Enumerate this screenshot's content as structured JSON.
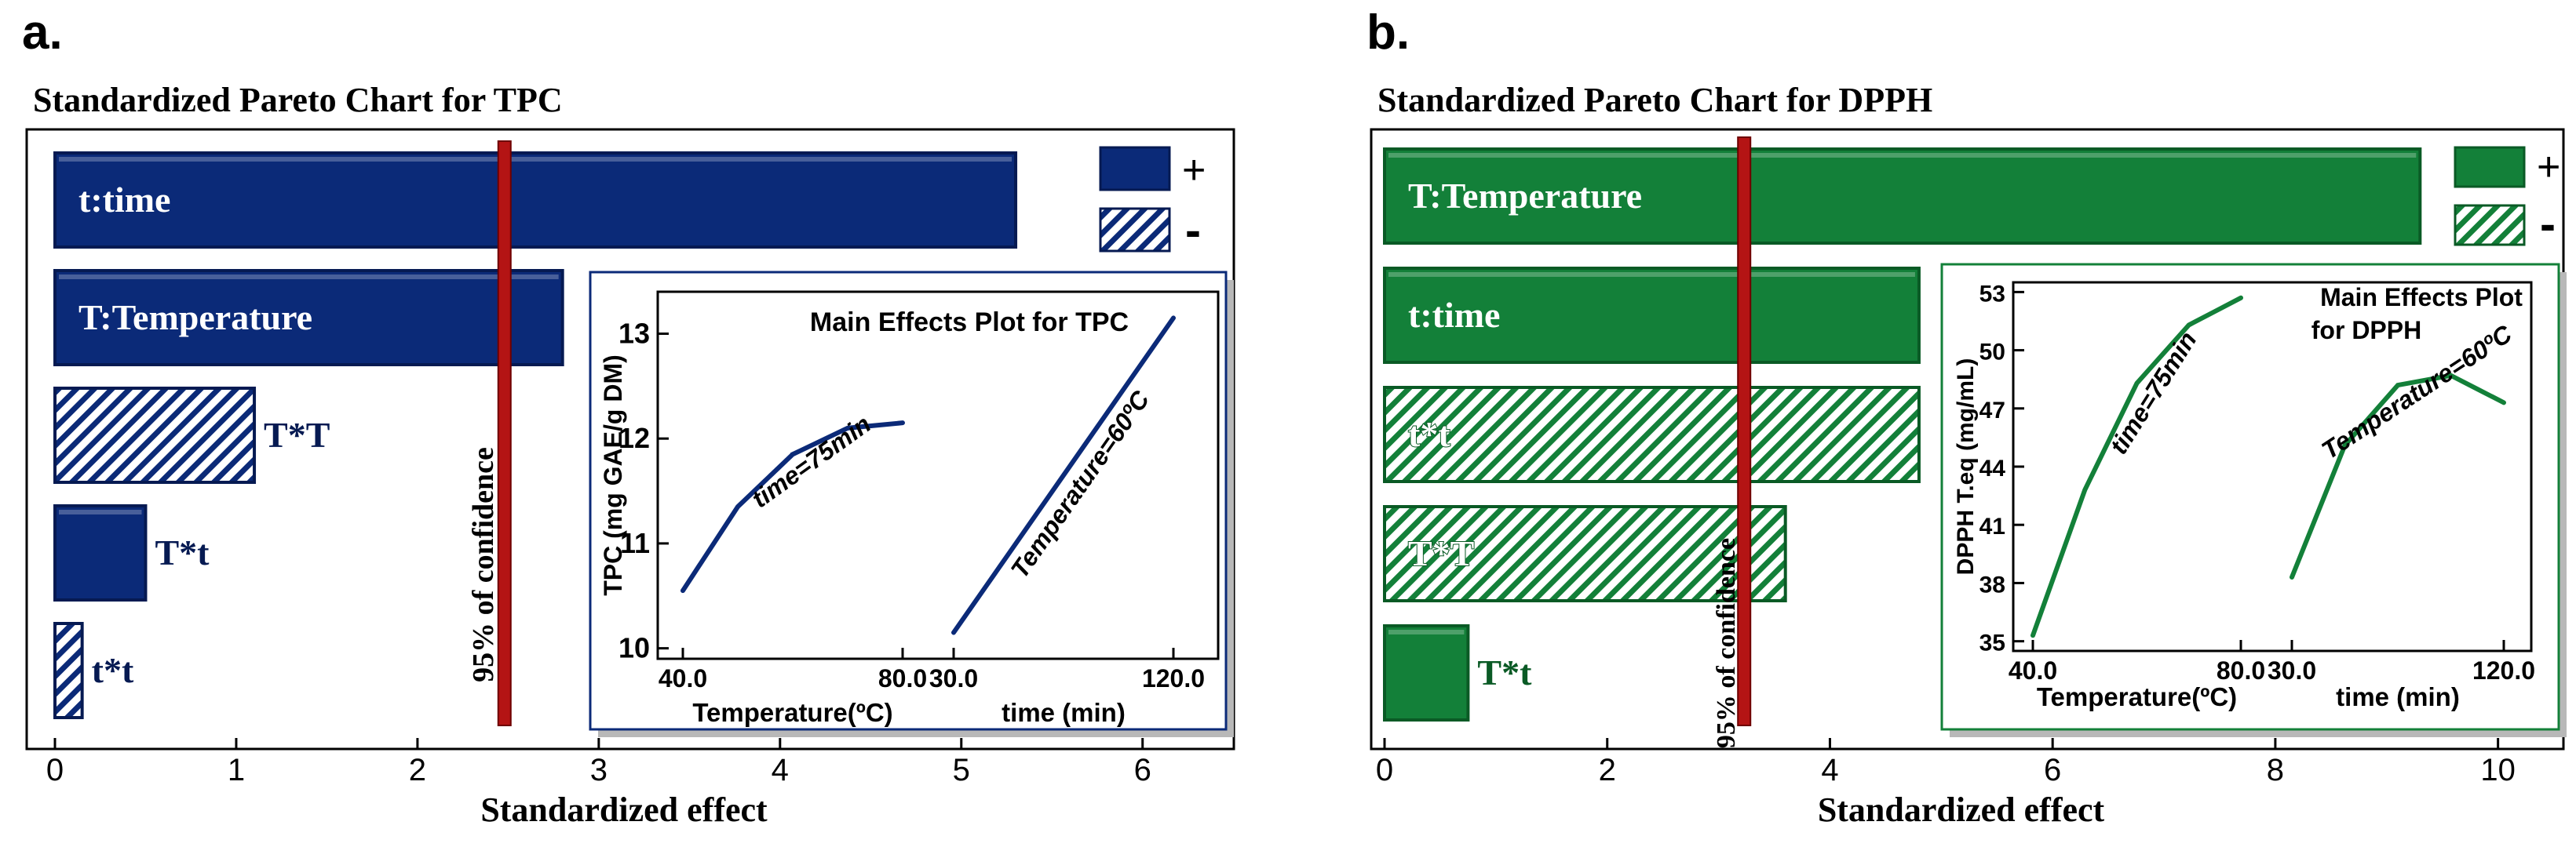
{
  "colors": {
    "blue": "#0b2a78",
    "blue_dark": "#061a52",
    "green": "#138039",
    "green_dark": "#0a5a25",
    "red": "#b41414",
    "inset_blue_line": "#0b2a78",
    "inset_green_line": "#138039"
  },
  "chart_data": [
    {
      "type": "bar",
      "panel_label": "a.",
      "title": "Standardized Pareto Chart for TPC",
      "xlabel": "Standardized effect",
      "xlim": [
        0,
        6.3
      ],
      "xticks": [
        "0",
        "1",
        "2",
        "3",
        "4",
        "5",
        "6"
      ],
      "xtick_values": [
        0,
        1,
        2,
        3,
        4,
        5,
        6
      ],
      "confidence": {
        "value": 2.48,
        "label": "95% of confidence"
      },
      "legend": {
        "positive": "+",
        "negative": "-",
        "placement": "top-right"
      },
      "bars": [
        {
          "label": "t:time",
          "value": 5.3,
          "sign": "+"
        },
        {
          "label": "T:Temperature",
          "value": 2.8,
          "sign": "+"
        },
        {
          "label": "T*T",
          "value": 1.1,
          "sign": "-"
        },
        {
          "label": "T*t",
          "value": 0.5,
          "sign": "+"
        },
        {
          "label": "t*t",
          "value": 0.15,
          "sign": "-"
        }
      ],
      "inset": {
        "type": "line",
        "title": "Main Effects Plot for TPC",
        "ylabel": "TPC (mg GAE/g DM)",
        "ylim": [
          9.9,
          13.4
        ],
        "yticks": [
          "10",
          "11",
          "12",
          "13"
        ],
        "ytick_values": [
          10,
          11,
          12,
          13
        ],
        "xlabels": [
          "Temperature(ºC)",
          "time (min)"
        ],
        "xticks": [
          "40.0",
          "80.0",
          "30.0",
          "120.0"
        ],
        "series": [
          {
            "name": "time=75min",
            "segment": 0,
            "x": [
              40,
              50,
              60,
              70,
              80
            ],
            "y": [
              10.55,
              11.35,
              11.85,
              12.1,
              12.15
            ]
          },
          {
            "name": "Temperature=60ºC",
            "segment": 1,
            "x": [
              30,
              52.5,
              75,
              97.5,
              120
            ],
            "y": [
              10.15,
              10.9,
              11.65,
              12.4,
              13.15
            ]
          }
        ]
      }
    },
    {
      "type": "bar",
      "panel_label": "b.",
      "title": "Standardized Pareto Chart for DPPH",
      "xlabel": "Standardized effect",
      "xlim": [
        0,
        10.2
      ],
      "xticks": [
        "0",
        "2",
        "4",
        "6",
        "8",
        "10"
      ],
      "xtick_values": [
        0,
        2,
        4,
        6,
        8,
        10
      ],
      "confidence": {
        "value": 3.23,
        "label": "95% of confidence"
      },
      "legend": {
        "positive": "+",
        "negative": "-",
        "placement": "top-right"
      },
      "bars": [
        {
          "label": "T:Temperature",
          "value": 9.3,
          "sign": "+"
        },
        {
          "label": "t:time",
          "value": 4.8,
          "sign": "+"
        },
        {
          "label": "t*t",
          "value": 4.8,
          "sign": "-"
        },
        {
          "label": "T*T",
          "value": 3.6,
          "sign": "-"
        },
        {
          "label": "T*t",
          "value": 0.75,
          "sign": "+"
        }
      ],
      "inset": {
        "type": "line",
        "title_line1": "Main Effects Plot",
        "title_line2": "for DPPH",
        "ylabel": "DPPH T.eq (mg/mL)",
        "ylim": [
          34.5,
          53.5
        ],
        "yticks": [
          "35",
          "38",
          "41",
          "44",
          "47",
          "50",
          "53"
        ],
        "ytick_values": [
          35,
          38,
          41,
          44,
          47,
          50,
          53
        ],
        "xlabels": [
          "Temperature(ºC)",
          "time (min)"
        ],
        "xticks": [
          "40.0",
          "80.0",
          "30.0",
          "120.0"
        ],
        "series": [
          {
            "name": "time=75min",
            "segment": 0,
            "x": [
              40,
              50,
              60,
              70,
              80
            ],
            "y": [
              35.3,
              42.8,
              48.3,
              51.3,
              52.7
            ]
          },
          {
            "name": "Temperature=60ºC",
            "segment": 1,
            "x": [
              30,
              52.5,
              75,
              97.5,
              120
            ],
            "y": [
              38.3,
              45.1,
              48.2,
              48.7,
              47.3
            ]
          }
        ]
      }
    }
  ]
}
